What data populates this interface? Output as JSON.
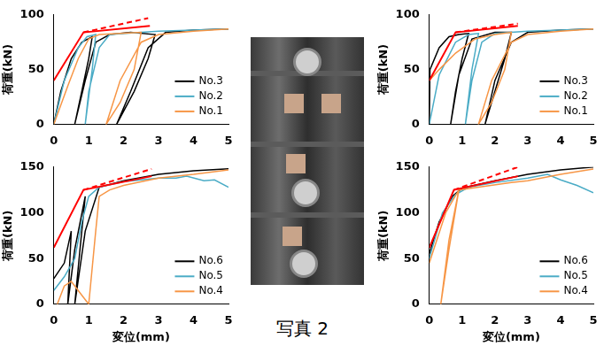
{
  "chart_data": [
    {
      "type": "line",
      "y_label": "荷重(kN)",
      "xlim": [
        0,
        5
      ],
      "xticks": [
        0,
        1,
        2,
        3,
        4,
        5
      ],
      "ylim": [
        0,
        100
      ],
      "yticks": [
        0,
        50,
        100
      ],
      "grid": false,
      "legend": "lower right",
      "series": [
        {
          "name": "No.3",
          "color": "#000000",
          "line_style": "solid",
          "x": [
            0,
            0.2,
            0.5,
            0.8,
            1.1,
            1.0,
            0.8,
            0.6,
            0.9,
            1.2,
            1.6,
            2.2,
            2.9,
            2.7,
            2.3,
            1.8,
            2.2,
            2.7,
            3.2,
            4.0,
            5.0
          ],
          "values": [
            0,
            30,
            60,
            75,
            80,
            60,
            30,
            0,
            40,
            75,
            82,
            84,
            82,
            60,
            30,
            0,
            30,
            70,
            84,
            86,
            87
          ]
        },
        {
          "name": "No.2",
          "color": "#4bacc6",
          "line_style": "solid",
          "x": [
            0,
            0.3,
            0.7,
            0.95,
            1.2,
            1.1,
            0.9,
            1.0,
            1.3,
            1.6,
            2.5,
            3.0,
            4.0,
            5.0
          ],
          "values": [
            0,
            40,
            70,
            80,
            82,
            50,
            0,
            30,
            70,
            82,
            84,
            85,
            86,
            87
          ]
        },
        {
          "name": "No.1",
          "color": "#f79646",
          "line_style": "solid",
          "x": [
            0,
            0.4,
            0.7,
            1.0,
            1.3,
            2.5,
            2.3,
            1.9,
            1.5,
            1.9,
            2.5,
            3.0,
            4.0,
            5.0
          ],
          "values": [
            0,
            35,
            60,
            78,
            82,
            84,
            50,
            20,
            0,
            40,
            75,
            82,
            85,
            87
          ]
        },
        {
          "color": "#ff0000",
          "line_style": "solid",
          "x": [
            0,
            0.85,
            2.75
          ],
          "values": [
            40,
            84,
            90
          ]
        },
        {
          "color": "#ff0000",
          "line_style": "dashed",
          "x": [
            0.85,
            2.7
          ],
          "values": [
            84,
            97
          ]
        }
      ]
    },
    {
      "type": "line",
      "x_label": "変位(mm)",
      "y_label": "荷重(kN)",
      "xlim": [
        0,
        5
      ],
      "xticks": [
        0,
        1,
        2,
        3,
        4,
        5
      ],
      "ylim": [
        0,
        150
      ],
      "yticks": [
        0,
        50,
        100,
        150
      ],
      "grid": false,
      "legend": "lower right",
      "series": [
        {
          "name": "No.6",
          "color": "#000000",
          "line_style": "solid",
          "x": [
            0,
            0.3,
            0.5,
            0.45,
            0.4,
            0.6,
            0.9,
            0.75,
            0.6,
            0.9,
            1.3,
            2.0,
            3.0,
            4.0,
            5.0
          ],
          "values": [
            28,
            45,
            80,
            40,
            0,
            60,
            118,
            60,
            0,
            80,
            128,
            135,
            142,
            146,
            148
          ]
        },
        {
          "name": "No.5",
          "color": "#4bacc6",
          "line_style": "solid",
          "x": [
            0,
            0.3,
            0.6,
            0.8,
            1.0,
            1.3,
            2.0,
            3.0,
            3.5,
            3.8,
            4.3,
            4.6,
            5.0
          ],
          "values": [
            15,
            30,
            50,
            90,
            118,
            128,
            134,
            138,
            138,
            140,
            135,
            136,
            128
          ]
        },
        {
          "name": "No.4",
          "color": "#f79646",
          "line_style": "solid",
          "x": [
            0.1,
            0.3,
            0.5,
            0.8,
            1.0,
            1.2,
            1.3,
            1.6,
            2.0,
            3.0,
            4.0,
            5.0
          ],
          "values": [
            0,
            20,
            25,
            10,
            0,
            80,
            118,
            125,
            130,
            138,
            142,
            147
          ]
        },
        {
          "color": "#ff0000",
          "line_style": "solid",
          "x": [
            0,
            0.85,
            2.8
          ],
          "values": [
            62,
            125,
            140
          ]
        },
        {
          "color": "#ff0000",
          "line_style": "dashed",
          "x": [
            0.85,
            2.8
          ],
          "values": [
            125,
            148
          ]
        }
      ]
    },
    {
      "type": "line",
      "y_label": "荷重(kN)",
      "xlim": [
        0,
        5
      ],
      "xticks": [
        0,
        1,
        2,
        3,
        4,
        5
      ],
      "ylim": [
        0,
        100
      ],
      "yticks": [
        0,
        50,
        100
      ],
      "grid": false,
      "legend": "lower right",
      "series": [
        {
          "name": "No.3",
          "color": "#000000",
          "line_style": "solid",
          "x": [
            0,
            0.02,
            0.3,
            0.6,
            0.9,
            1.2,
            1.0,
            0.8,
            0.65,
            0.9,
            1.3,
            2.0,
            2.5,
            2.3,
            2.0,
            1.7,
            2.0,
            2.5,
            3.0,
            4.0,
            5.0
          ],
          "values": [
            0,
            50,
            70,
            80,
            82,
            83,
            60,
            30,
            0,
            45,
            78,
            84,
            84,
            60,
            30,
            0,
            40,
            75,
            84,
            86,
            87
          ]
        },
        {
          "name": "No.2",
          "color": "#4bacc6",
          "line_style": "solid",
          "x": [
            0,
            0.3,
            0.8,
            1.2,
            1.5,
            1.3,
            1.1,
            1.3,
            1.6,
            2.0,
            3.0,
            4.0,
            5.0
          ],
          "values": [
            0,
            45,
            75,
            82,
            83,
            50,
            0,
            40,
            75,
            83,
            85,
            86,
            87
          ]
        },
        {
          "name": "No.1",
          "color": "#f79646",
          "line_style": "solid",
          "x": [
            0,
            0.3,
            0.8,
            1.4,
            2.0,
            2.5,
            2.3,
            1.9,
            1.5,
            1.9,
            2.5,
            3.0,
            4.0,
            5.0
          ],
          "values": [
            40,
            50,
            65,
            78,
            82,
            84,
            50,
            20,
            0,
            40,
            75,
            82,
            85,
            87
          ]
        },
        {
          "color": "#ff0000",
          "line_style": "solid",
          "x": [
            0,
            0.8,
            2.7
          ],
          "values": [
            40,
            84,
            90
          ]
        },
        {
          "color": "#ff0000",
          "line_style": "dashed",
          "x": [
            0.8,
            2.7
          ],
          "values": [
            84,
            92
          ]
        }
      ]
    },
    {
      "type": "line",
      "x_label": "変位(mm)",
      "y_label": "荷重(kN)",
      "xlim": [
        0,
        5
      ],
      "xticks": [
        0,
        1,
        2,
        3,
        4,
        5
      ],
      "ylim": [
        0,
        150
      ],
      "yticks": [
        0,
        50,
        100,
        150
      ],
      "grid": false,
      "legend": "lower right",
      "series": [
        {
          "name": "No.6",
          "color": "#000000",
          "line_style": "solid",
          "x": [
            0,
            0.3,
            0.7,
            1.0,
            2.0,
            3.0,
            4.0,
            5.0
          ],
          "values": [
            55,
            90,
            118,
            127,
            135,
            142,
            147,
            150
          ]
        },
        {
          "name": "No.5",
          "color": "#4bacc6",
          "line_style": "solid",
          "x": [
            0,
            0.4,
            0.8,
            1.2,
            2.0,
            3.0,
            3.6,
            4.0,
            4.5,
            5.0
          ],
          "values": [
            50,
            100,
            120,
            128,
            133,
            138,
            142,
            136,
            130,
            122
          ]
        },
        {
          "name": "No.4",
          "color": "#f79646",
          "line_style": "solid",
          "x": [
            0,
            0.5,
            0.9,
            0.6,
            0.35,
            0.6,
            0.9,
            1.5,
            2.5,
            3.0,
            4.0,
            5.0
          ],
          "values": [
            45,
            100,
            125,
            60,
            0,
            70,
            125,
            128,
            133,
            135,
            142,
            148
          ]
        },
        {
          "color": "#ff0000",
          "line_style": "solid",
          "x": [
            0,
            0.75,
            2.7
          ],
          "values": [
            62,
            125,
            140
          ]
        },
        {
          "color": "#ff0000",
          "line_style": "dashed",
          "x": [
            0.75,
            2.7
          ],
          "values": [
            125,
            150
          ]
        }
      ]
    }
  ],
  "caption": "写真 2"
}
